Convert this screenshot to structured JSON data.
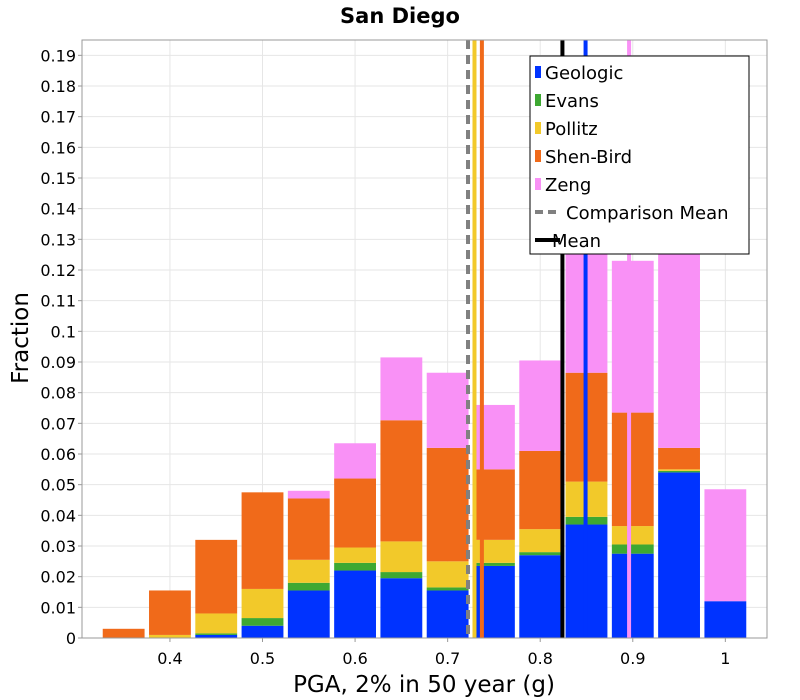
{
  "chart_data": {
    "type": "bar",
    "stacked": true,
    "title": "San Diego",
    "xlabel": "PGA, 2% in 50 year (g)",
    "ylabel": "Fraction",
    "xlim": [
      0.305,
      1.045
    ],
    "ylim": [
      0,
      0.195
    ],
    "x_ticks": [
      0.4,
      0.5,
      0.6,
      0.7,
      0.8,
      0.9,
      1
    ],
    "x_tick_labels": [
      "0.4",
      "0.5",
      "0.6",
      "0.7",
      "0.8",
      "0.9",
      "1"
    ],
    "y_ticks": [
      0,
      0.01,
      0.02,
      0.03,
      0.04,
      0.05,
      0.06,
      0.07,
      0.08,
      0.09,
      0.1,
      0.11,
      0.12,
      0.13,
      0.14,
      0.15,
      0.16,
      0.17,
      0.18,
      0.19
    ],
    "y_tick_labels": [
      "0",
      "0.01",
      "0.02",
      "0.03",
      "0.04",
      "0.05",
      "0.06",
      "0.07",
      "0.08",
      "0.09",
      "0.1",
      "0.11",
      "0.12",
      "0.13",
      "0.14",
      "0.15",
      "0.16",
      "0.17",
      "0.18",
      "0.19"
    ],
    "bin_width": 0.05,
    "bins": [
      0.35,
      0.4,
      0.45,
      0.5,
      0.55,
      0.6,
      0.65,
      0.7,
      0.75,
      0.8,
      0.85,
      0.9,
      0.95,
      1.0
    ],
    "series": [
      {
        "name": "Geologic",
        "color": "#0033ff",
        "values": [
          0,
          0,
          0.001,
          0.004,
          0.0155,
          0.022,
          0.0195,
          0.0155,
          0.0235,
          0.027,
          0.037,
          0.0275,
          0.054,
          0.012
        ]
      },
      {
        "name": "Evans",
        "color": "#3ea832",
        "values": [
          0,
          0,
          0.0005,
          0.0025,
          0.0025,
          0.0025,
          0.002,
          0.001,
          0.001,
          0.001,
          0.0025,
          0.003,
          0.0005,
          0
        ]
      },
      {
        "name": "Pollitz",
        "color": "#f2c92a",
        "values": [
          0,
          0.001,
          0.0065,
          0.0095,
          0.0075,
          0.005,
          0.01,
          0.0085,
          0.0075,
          0.0075,
          0.0115,
          0.006,
          0.0005,
          0
        ]
      },
      {
        "name": "Shen-Bird",
        "color": "#f06a1a",
        "values": [
          0.003,
          0.0145,
          0.024,
          0.0315,
          0.02,
          0.0225,
          0.0395,
          0.037,
          0.023,
          0.0255,
          0.0355,
          0.037,
          0.007,
          0
        ]
      },
      {
        "name": "Zeng",
        "color": "#f991f6",
        "values": [
          0,
          0,
          0,
          0,
          0.0025,
          0.0115,
          0.0205,
          0.0245,
          0.021,
          0.0295,
          0.0395,
          0.0495,
          0.0865,
          0.0365
        ]
      }
    ],
    "vertical_lines": [
      {
        "name": "Comparison Mean",
        "x": 0.722,
        "color": "#808080",
        "dashed": true
      },
      {
        "name": "Pollitz mean",
        "x": 0.729,
        "color": "#f2c92a",
        "dashed": false
      },
      {
        "name": "Shen-Bird mean",
        "x": 0.737,
        "color": "#f06a1a",
        "dashed": false
      },
      {
        "name": "Mean",
        "x": 0.824,
        "color": "#000000",
        "dashed": false
      },
      {
        "name": "Geologic mean",
        "x": 0.849,
        "color": "#0033ff",
        "dashed": false
      },
      {
        "name": "Zeng mean",
        "x": 0.896,
        "color": "#f991f6",
        "dashed": false
      }
    ],
    "legend": {
      "position": "top-right",
      "entries": [
        {
          "label": "Geologic",
          "color": "#0033ff",
          "style": "patch"
        },
        {
          "label": "Evans",
          "color": "#3ea832",
          "style": "patch"
        },
        {
          "label": "Pollitz",
          "color": "#f2c92a",
          "style": "patch"
        },
        {
          "label": "Shen-Bird",
          "color": "#f06a1a",
          "style": "patch"
        },
        {
          "label": "Zeng",
          "color": "#f991f6",
          "style": "patch"
        },
        {
          "label": "Comparison Mean",
          "color": "#808080",
          "style": "dashed"
        },
        {
          "label": "Mean",
          "color": "#000000",
          "style": "line"
        }
      ]
    },
    "grid": true
  }
}
